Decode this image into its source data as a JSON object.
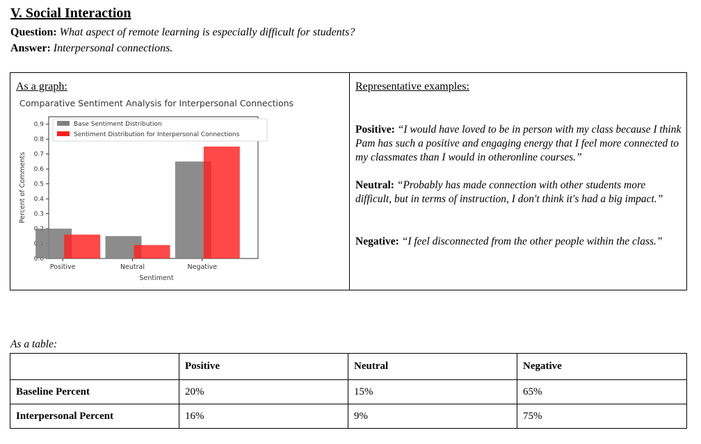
{
  "section": {
    "title": "V. Social Interaction"
  },
  "qa": {
    "question_label": "Question:",
    "question_text": "What aspect of remote learning is especially difficult for students?",
    "answer_label": "Answer:",
    "answer_text": "Interpersonal connections."
  },
  "graph_heading": "As a graph:",
  "examples": {
    "heading": "Representative examples:",
    "items": [
      {
        "label": "Positive:",
        "text": "“I would have loved to be in person with my class because I think Pam has such a positive and engaging energy that I feel more connected to my classmates than I would in otheronline courses.”"
      },
      {
        "label": "Neutral:",
        "text": "“Probably has made connection with other students more difficult, but in terms of instruction, I don't think it's had a big impact.”"
      },
      {
        "label": "Negative:",
        "text": "“I feel disconnected from the other people within the class.”"
      }
    ]
  },
  "chart_data": {
    "type": "bar",
    "title": "Comparative Sentiment Analysis for Interpersonal Connections",
    "xlabel": "Sentiment",
    "ylabel": "Percent of Comments",
    "categories": [
      "Positive",
      "Neutral",
      "Negative"
    ],
    "series": [
      {
        "name": "Base Sentiment Distribution",
        "values": [
          0.2,
          0.15,
          0.65
        ],
        "color": "#808080"
      },
      {
        "name": "Sentiment Distribution for Interpersonal Connections",
        "values": [
          0.16,
          0.09,
          0.75
        ],
        "color": "#ff2020"
      }
    ],
    "ylim": [
      0,
      0.95
    ],
    "yticks": [
      "0.0",
      "0.1",
      "0.2",
      "0.3",
      "0.4",
      "0.5",
      "0.6",
      "0.7",
      "0.8",
      "0.9"
    ],
    "legend": "top-left",
    "grid": false
  },
  "table": {
    "caption": "As a table:",
    "columns": [
      "",
      "Positive",
      "Neutral",
      "Negative"
    ],
    "rows": [
      {
        "label": "Baseline Percent",
        "values": [
          "20%",
          "15%",
          "65%"
        ]
      },
      {
        "label": "Interpersonal Percent",
        "values": [
          "16%",
          "9%",
          "75%"
        ]
      }
    ]
  }
}
